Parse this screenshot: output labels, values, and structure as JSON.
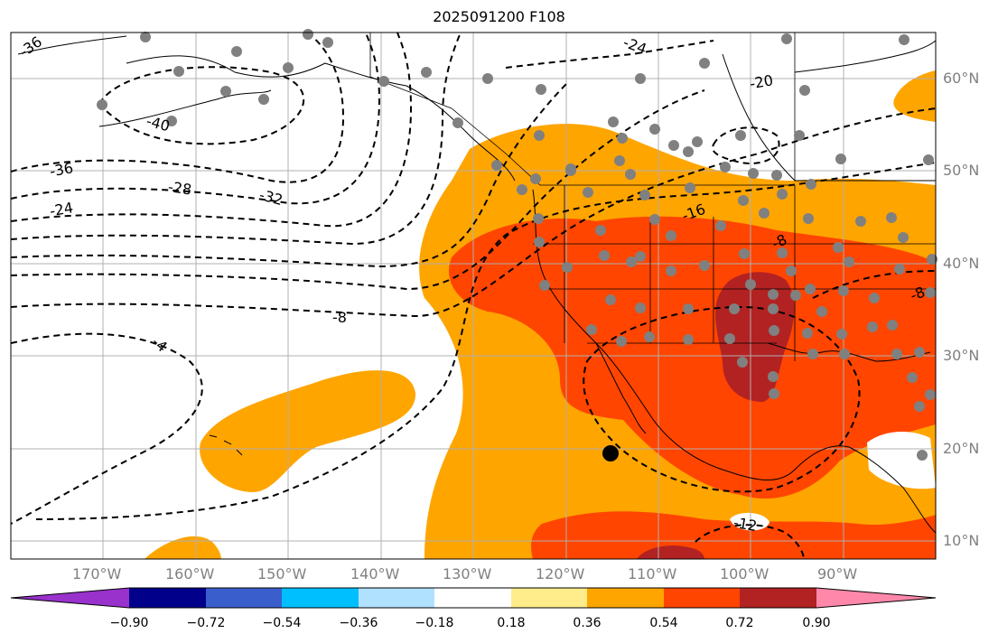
{
  "title": "2025091200 F108",
  "lon_labels": [
    "170°W",
    "160°W",
    "150°W",
    "140°W",
    "130°W",
    "120°W",
    "110°W",
    "100°W",
    "90°W"
  ],
  "lat_labels": [
    "60°N",
    "50°N",
    "40°N",
    "30°N",
    "20°N",
    "10°N"
  ],
  "contour_labels": [
    "-36",
    "-24",
    "-40",
    "-36",
    "-28",
    "-32",
    "-24",
    "-20",
    "-16",
    "-8",
    "-8",
    "-4",
    "-12",
    "-8"
  ],
  "colorbar": {
    "tick_labels": [
      "−0.90",
      "−0.72",
      "−0.54",
      "−0.36",
      "−0.18",
      "0.18",
      "0.36",
      "0.54",
      "0.72",
      "0.90"
    ],
    "colors": [
      "#9932cc",
      "#00008b",
      "#3a5fcd",
      "#00bfff",
      "#b0e2ff",
      "#ffffff",
      "#ffec8b",
      "#ffa500",
      "#ff4500",
      "#b22222",
      "#ff88aa"
    ]
  },
  "fill_colors": {
    "land_anomaly_low": "#ffa500",
    "land_anomaly_mid": "#ff4500",
    "land_anomaly_high": "#b22222",
    "station": "#808080",
    "marker": "#000000",
    "grid": "#b0b0b0"
  }
}
